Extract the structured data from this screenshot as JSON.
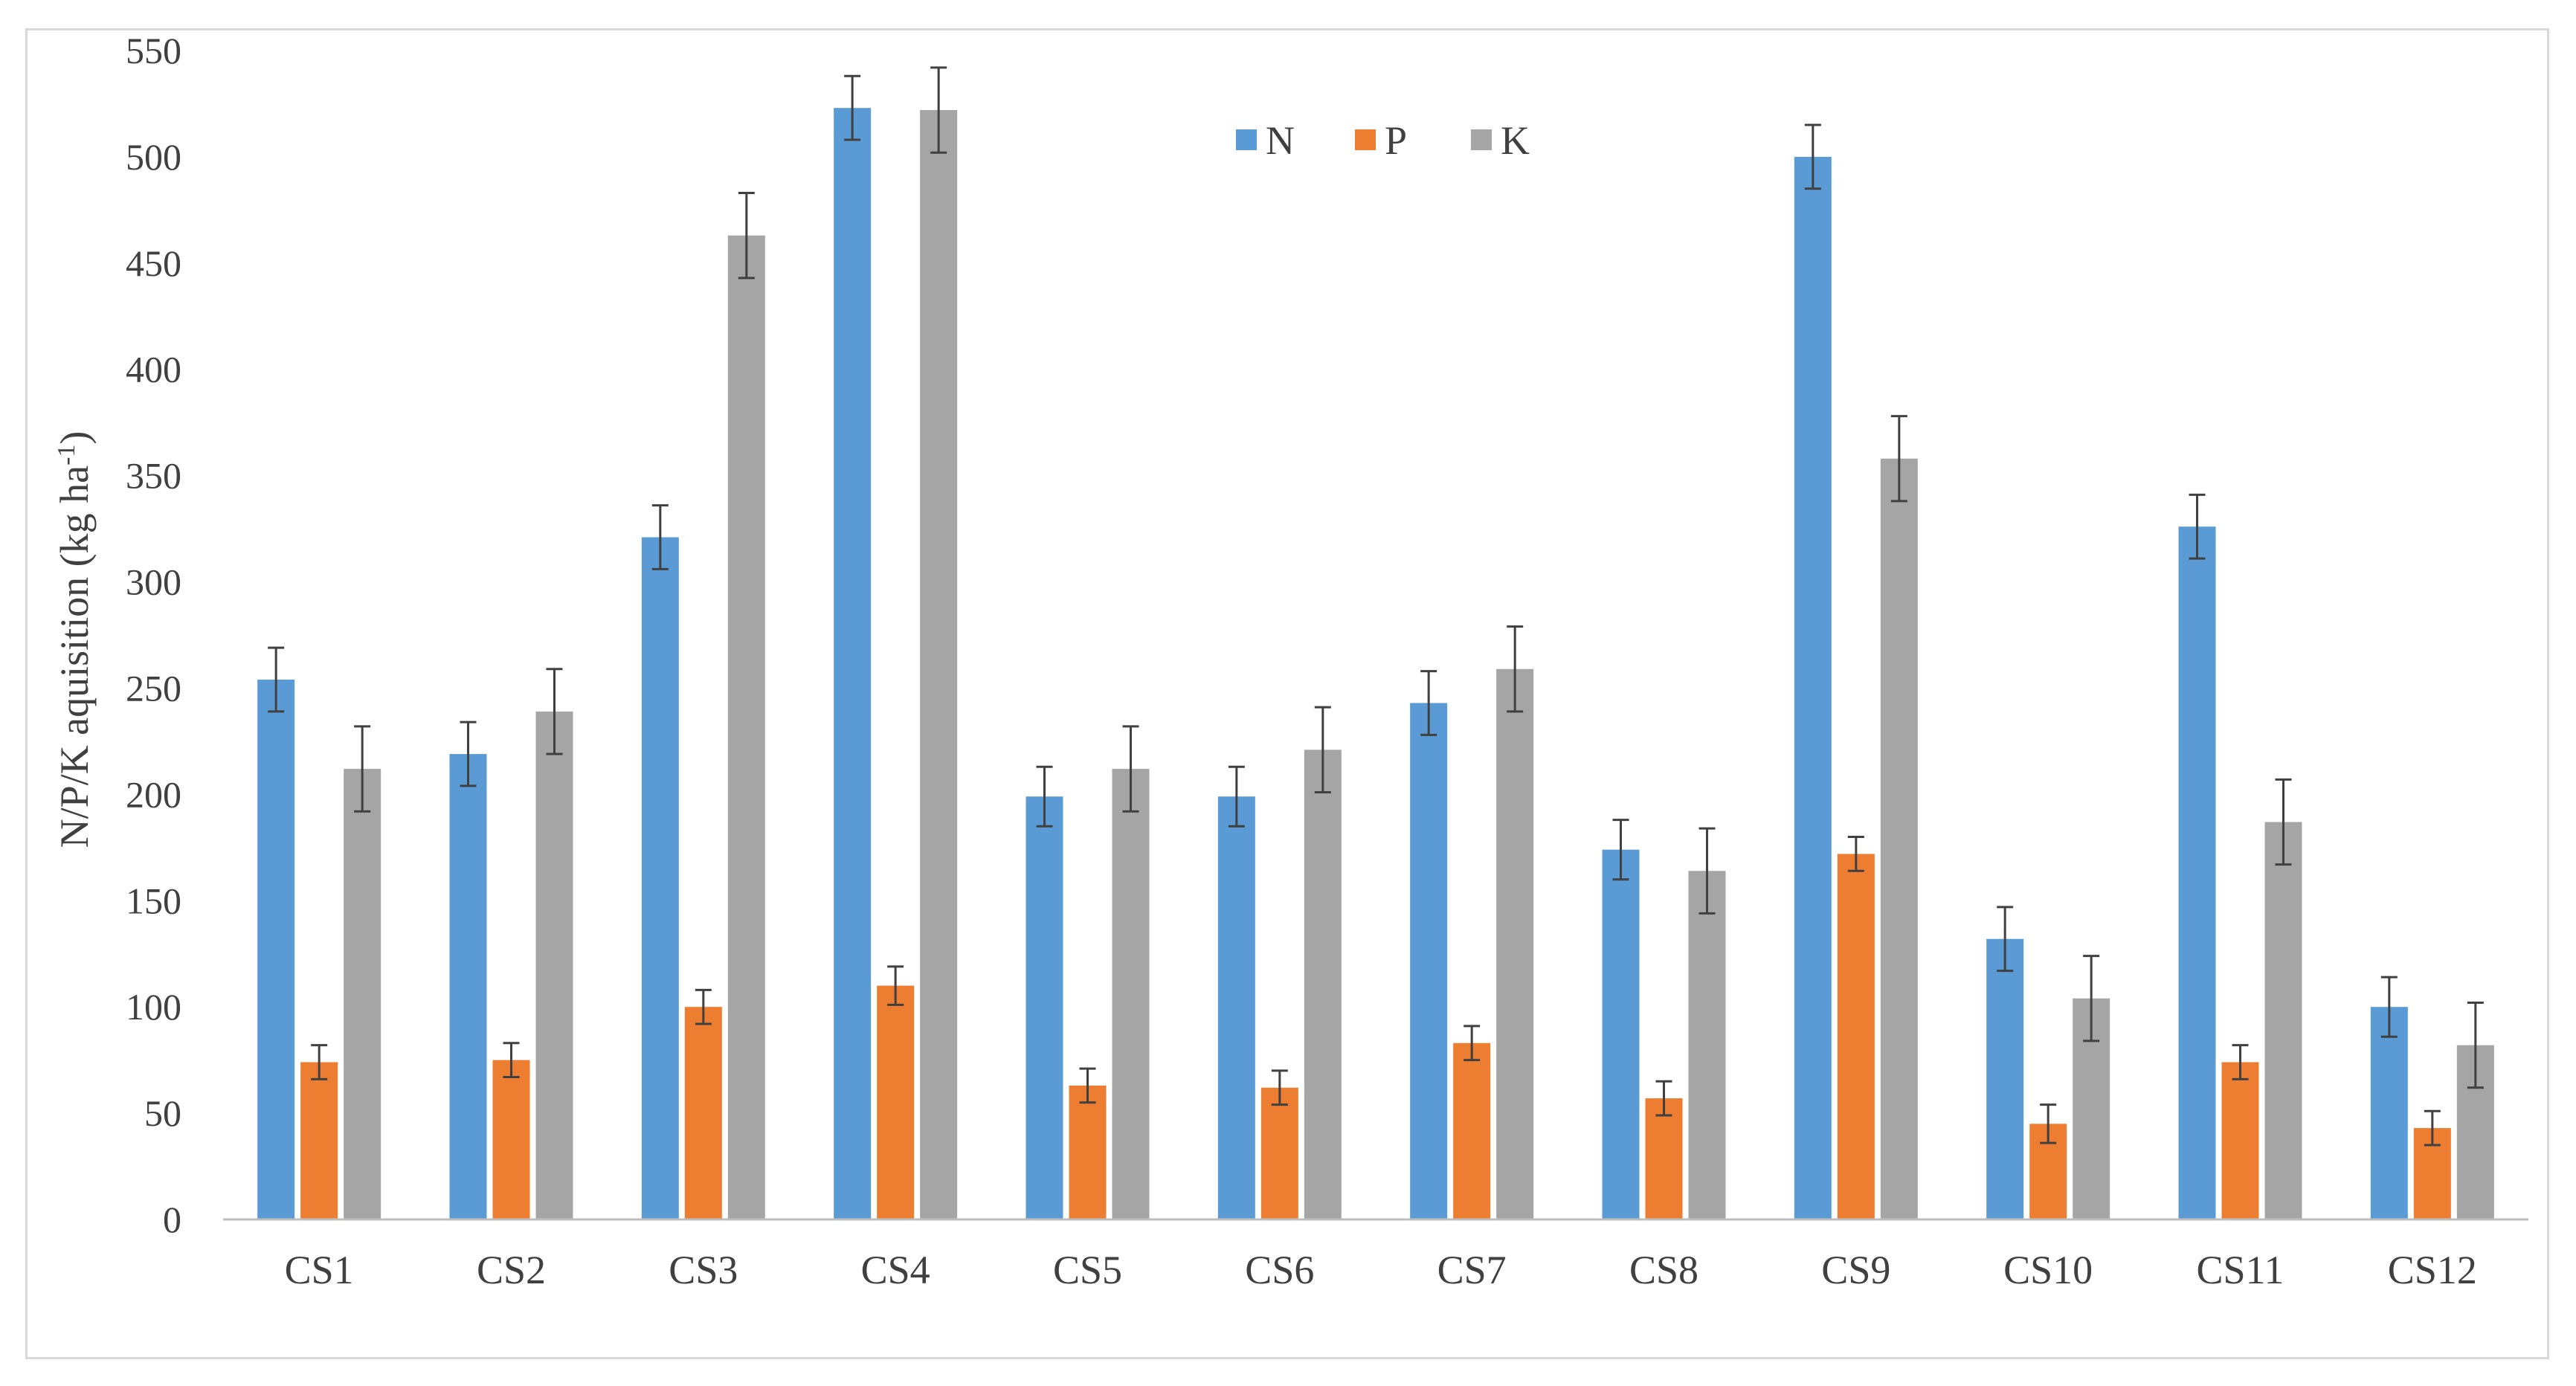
{
  "chart_data": {
    "type": "bar",
    "title": "",
    "xlabel": "",
    "ylabel": "N/P/K aquisition (kg ha",
    "ylabel_sup": "-1",
    "ylabel_close": ")",
    "ylim": [
      0,
      550
    ],
    "yticks": [
      0,
      50,
      100,
      150,
      200,
      250,
      300,
      350,
      400,
      450,
      500,
      550
    ],
    "grid": false,
    "legend_position": "top-center",
    "categories": [
      "CS1",
      "CS2",
      "CS3",
      "CS4",
      "CS5",
      "CS6",
      "CS7",
      "CS8",
      "CS9",
      "CS10",
      "CS11",
      "CS12"
    ],
    "series": [
      {
        "name": "N",
        "color": "#5b9bd5",
        "values": [
          254,
          219,
          321,
          523,
          199,
          199,
          243,
          174,
          500,
          132,
          326,
          100
        ],
        "errors": [
          15,
          15,
          15,
          15,
          14,
          14,
          15,
          14,
          15,
          15,
          15,
          14
        ]
      },
      {
        "name": "P",
        "color": "#ed7d31",
        "values": [
          74,
          75,
          100,
          110,
          63,
          62,
          83,
          57,
          172,
          45,
          74,
          43
        ],
        "errors": [
          8,
          8,
          8,
          9,
          8,
          8,
          8,
          8,
          8,
          9,
          8,
          8
        ]
      },
      {
        "name": "K",
        "color": "#a5a5a5",
        "values": [
          212,
          239,
          463,
          522,
          212,
          221,
          259,
          164,
          358,
          104,
          187,
          82
        ],
        "errors": [
          20,
          20,
          20,
          20,
          20,
          20,
          20,
          20,
          20,
          20,
          20,
          20
        ]
      }
    ]
  }
}
